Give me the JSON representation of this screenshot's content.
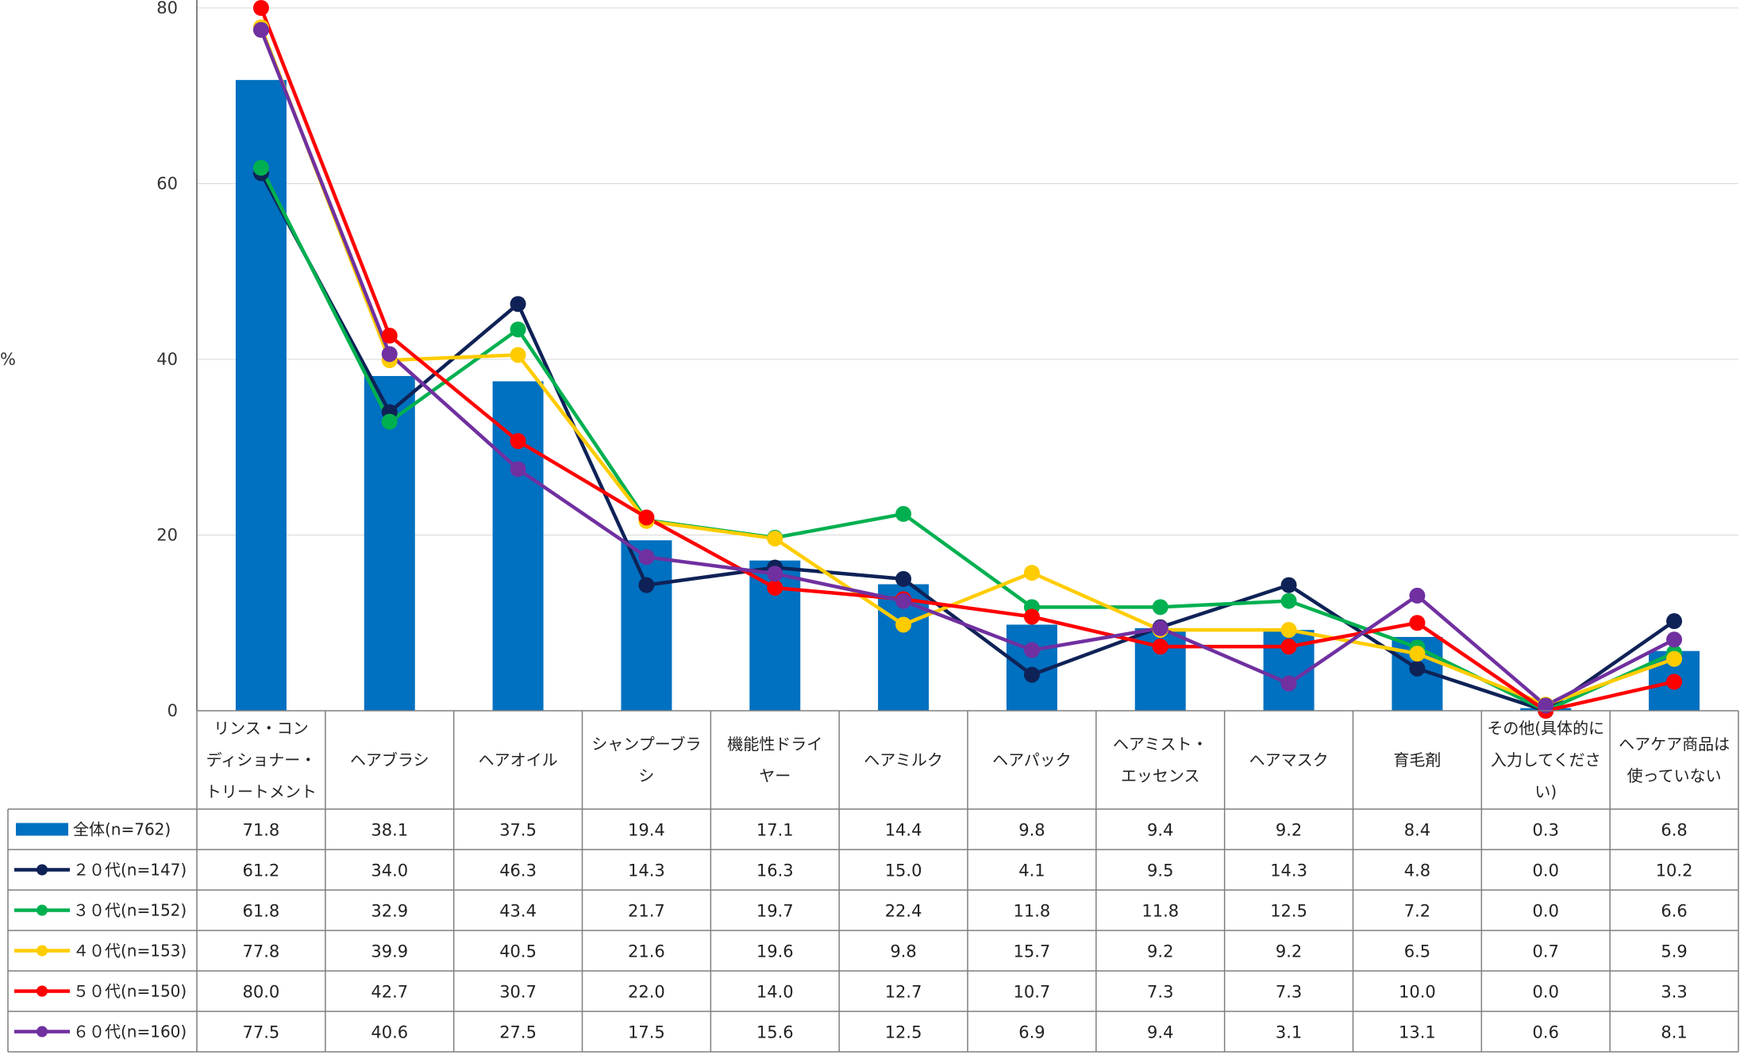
{
  "chart_data": {
    "type": "bar+line",
    "title": "",
    "ylabel": "%",
    "xlabel": "",
    "ylim": [
      0,
      80
    ],
    "yticks": [
      0,
      20,
      40,
      60,
      80
    ],
    "grid": true,
    "categories": [
      [
        "リンス・コン",
        "ディショナー・",
        "トリートメント"
      ],
      [
        "ヘアブラシ"
      ],
      [
        "ヘアオイル"
      ],
      [
        "シャンプーブラ",
        "シ"
      ],
      [
        "機能性ドライ",
        "ヤー"
      ],
      [
        "ヘアミルク"
      ],
      [
        "ヘアパック"
      ],
      [
        "ヘアミスト・",
        "エッセンス"
      ],
      [
        "ヘアマスク"
      ],
      [
        "育毛剤"
      ],
      [
        "その他(具体的に",
        "入力してくださ",
        "い)"
      ],
      [
        "ヘアケア商品は",
        "使っていない"
      ]
    ],
    "series": [
      {
        "name": "全体(n=762)",
        "kind": "bar",
        "color": "#0070C0",
        "values": [
          71.8,
          38.1,
          37.5,
          19.4,
          17.1,
          14.4,
          9.8,
          9.4,
          9.2,
          8.4,
          0.3,
          6.8
        ],
        "labels": [
          "71.8",
          "38.1",
          "37.5",
          "19.4",
          "17.1",
          "14.4",
          "9.8",
          "9.4",
          "9.2",
          "8.4",
          "0.3",
          "6.8"
        ]
      },
      {
        "name": "２０代(n=147)",
        "kind": "line",
        "color": "#0F2257",
        "values": [
          61.2,
          34.0,
          46.3,
          14.3,
          16.3,
          15.0,
          4.1,
          9.5,
          14.3,
          4.8,
          0.0,
          10.2
        ],
        "labels": [
          "61.2",
          "34.0",
          "46.3",
          "14.3",
          "16.3",
          "15.0",
          "4.1",
          "9.5",
          "14.3",
          "4.8",
          "0.0",
          "10.2"
        ]
      },
      {
        "name": "３０代(n=152)",
        "kind": "line",
        "color": "#00B050",
        "values": [
          61.8,
          32.9,
          43.4,
          21.7,
          19.7,
          22.4,
          11.8,
          11.8,
          12.5,
          7.2,
          0.0,
          6.6
        ],
        "labels": [
          "61.8",
          "32.9",
          "43.4",
          "21.7",
          "19.7",
          "22.4",
          "11.8",
          "11.8",
          "12.5",
          "7.2",
          "0.0",
          "6.6"
        ]
      },
      {
        "name": "４０代(n=153)",
        "kind": "line",
        "color": "#FFCC00",
        "values": [
          77.8,
          39.9,
          40.5,
          21.6,
          19.6,
          9.8,
          15.7,
          9.2,
          9.2,
          6.5,
          0.7,
          5.9
        ],
        "labels": [
          "77.8",
          "39.9",
          "40.5",
          "21.6",
          "19.6",
          "9.8",
          "15.7",
          "9.2",
          "9.2",
          "6.5",
          "0.7",
          "5.9"
        ]
      },
      {
        "name": "５０代(n=150)",
        "kind": "line",
        "color": "#FF0000",
        "values": [
          80.0,
          42.7,
          30.7,
          22.0,
          14.0,
          12.7,
          10.7,
          7.3,
          7.3,
          10.0,
          0.0,
          3.3
        ],
        "labels": [
          "80.0",
          "42.7",
          "30.7",
          "22.0",
          "14.0",
          "12.7",
          "10.7",
          "7.3",
          "7.3",
          "10.0",
          "0.0",
          "3.3"
        ]
      },
      {
        "name": "６０代(n=160)",
        "kind": "line",
        "color": "#7030A0",
        "values": [
          77.5,
          40.6,
          27.5,
          17.5,
          15.6,
          12.5,
          6.9,
          9.4,
          3.1,
          13.1,
          0.6,
          8.1
        ],
        "labels": [
          "77.5",
          "40.6",
          "27.5",
          "17.5",
          "15.6",
          "12.5",
          "6.9",
          "9.4",
          "3.1",
          "13.1",
          "0.6",
          "8.1"
        ]
      }
    ]
  }
}
